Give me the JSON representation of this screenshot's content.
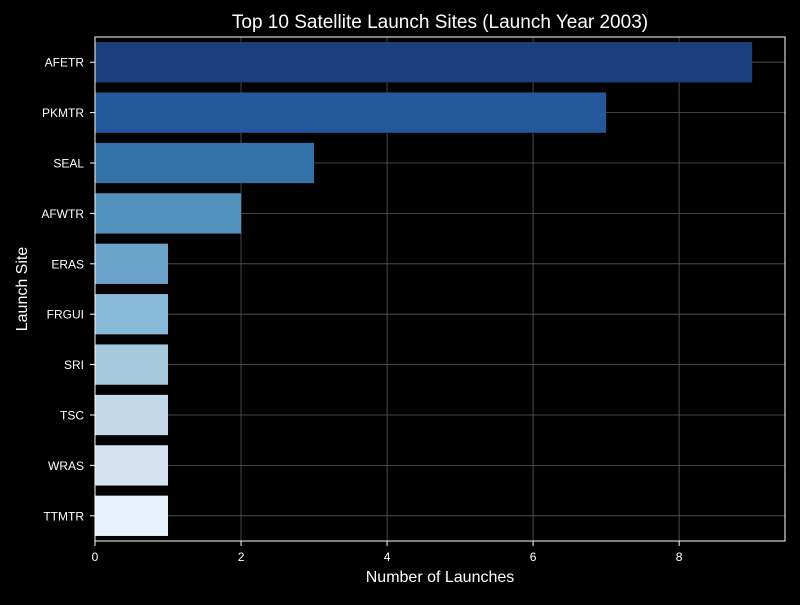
{
  "chart_data": {
    "type": "bar",
    "orientation": "horizontal",
    "title": "Top 10 Satellite Launch Sites (Launch Year 2003)",
    "xlabel": "Number of Launches",
    "ylabel": "Launch Site",
    "categories": [
      "AFETR",
      "PKMTR",
      "SEAL",
      "AFWTR",
      "ERAS",
      "FRGUI",
      "SRI",
      "TSC",
      "WRAS",
      "TTMTR"
    ],
    "values": [
      9,
      7,
      3,
      2,
      1,
      1,
      1,
      1,
      1,
      1
    ],
    "xlim": [
      0,
      9.45
    ],
    "xticks": [
      0,
      2,
      4,
      6,
      8
    ],
    "xtick_labels": [
      "0",
      "2",
      "4",
      "6",
      "8"
    ],
    "grid": true,
    "legend": "none",
    "bar_colors": [
      "#1a3f7c",
      "#23599c",
      "#3371a8",
      "#5192bd",
      "#6aa2cb",
      "#88b9d8",
      "#a7c9dd",
      "#c3d8e8",
      "#d5e2f1",
      "#e8f0fa"
    ],
    "background_color": "#000000",
    "text_color": "#ffffff",
    "grid_color": "#5a5a5a"
  }
}
